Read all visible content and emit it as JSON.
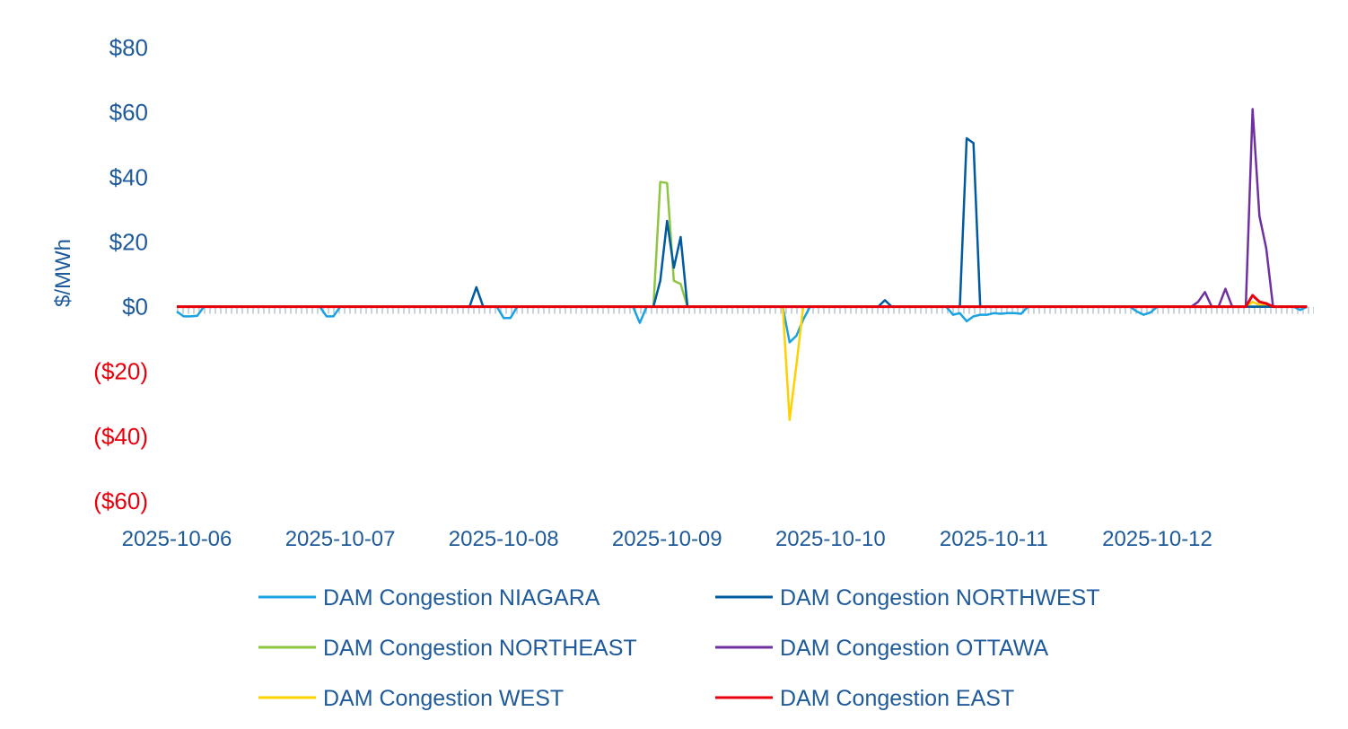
{
  "chart_data": {
    "type": "line",
    "ylabel": "$/MWh",
    "ylim": [
      -60,
      80
    ],
    "yticks": [
      {
        "value": 80,
        "label": "$80"
      },
      {
        "value": 60,
        "label": "$60"
      },
      {
        "value": 40,
        "label": "$40"
      },
      {
        "value": 20,
        "label": "$20"
      },
      {
        "value": 0,
        "label": "$0"
      },
      {
        "value": -20,
        "label": "($20)"
      },
      {
        "value": -40,
        "label": "($40)"
      },
      {
        "value": -60,
        "label": "($60)"
      }
    ],
    "xticks": [
      {
        "x": 0,
        "label": "2025-10-06"
      },
      {
        "x": 24,
        "label": "2025-10-07"
      },
      {
        "x": 48,
        "label": "2025-10-08"
      },
      {
        "x": 72,
        "label": "2025-10-09"
      },
      {
        "x": 96,
        "label": "2025-10-10"
      },
      {
        "x": 120,
        "label": "2025-10-11"
      },
      {
        "x": 144,
        "label": "2025-10-12"
      }
    ],
    "xlim": [
      0,
      167
    ],
    "legend_position": "bottom",
    "series": [
      {
        "name": "DAM Congestion NIAGARA",
        "color": "#1aa3e0",
        "points": [
          [
            0,
            -1.5
          ],
          [
            1,
            -3
          ],
          [
            2,
            -3
          ],
          [
            3,
            -2.8
          ],
          [
            4,
            0
          ],
          [
            21,
            0
          ],
          [
            22,
            -3
          ],
          [
            23,
            -3
          ],
          [
            24,
            0
          ],
          [
            47,
            0
          ],
          [
            48,
            -3.5
          ],
          [
            49,
            -3.5
          ],
          [
            50,
            0
          ],
          [
            67,
            0
          ],
          [
            68,
            -5
          ],
          [
            69,
            0
          ],
          [
            89,
            0
          ],
          [
            90,
            -11
          ],
          [
            91,
            -9
          ],
          [
            92,
            -4
          ],
          [
            93,
            0
          ],
          [
            113,
            0
          ],
          [
            114,
            -2.5
          ],
          [
            115,
            -2
          ],
          [
            116,
            -4.5
          ],
          [
            117,
            -3
          ],
          [
            118,
            -2.5
          ],
          [
            119,
            -2.5
          ],
          [
            120,
            -2
          ],
          [
            121,
            -2.2
          ],
          [
            122,
            -2
          ],
          [
            123,
            -2
          ],
          [
            124,
            -2.2
          ],
          [
            125,
            0
          ],
          [
            140,
            0
          ],
          [
            141,
            -1.5
          ],
          [
            142,
            -2.5
          ],
          [
            143,
            -1.8
          ],
          [
            144,
            0
          ],
          [
            164,
            0
          ],
          [
            165,
            -1
          ],
          [
            166,
            0
          ]
        ]
      },
      {
        "name": "DAM Congestion NORTHWEST",
        "color": "#005aa0",
        "points": [
          [
            0,
            0
          ],
          [
            43,
            0
          ],
          [
            44,
            6
          ],
          [
            45,
            0
          ],
          [
            70,
            0
          ],
          [
            71,
            8
          ],
          [
            72,
            26.5
          ],
          [
            73,
            12
          ],
          [
            74,
            21.5
          ],
          [
            75,
            0
          ],
          [
            103,
            0
          ],
          [
            104,
            2
          ],
          [
            105,
            0
          ],
          [
            115,
            0
          ],
          [
            116,
            52
          ],
          [
            117,
            50.5
          ],
          [
            118,
            0
          ],
          [
            166,
            0
          ]
        ]
      },
      {
        "name": "DAM Congestion NORTHEAST",
        "color": "#8dc63f",
        "points": [
          [
            0,
            0
          ],
          [
            70,
            0
          ],
          [
            71,
            38.5
          ],
          [
            72,
            38.2
          ],
          [
            73,
            8
          ],
          [
            74,
            7
          ],
          [
            75,
            0
          ],
          [
            166,
            0
          ]
        ]
      },
      {
        "name": "DAM Congestion OTTAWA",
        "color": "#7030a0",
        "points": [
          [
            0,
            0
          ],
          [
            149,
            0
          ],
          [
            150,
            1.5
          ],
          [
            151,
            4.5
          ],
          [
            152,
            0
          ],
          [
            153,
            0
          ],
          [
            154,
            5.5
          ],
          [
            155,
            0
          ],
          [
            157,
            0
          ],
          [
            158,
            61
          ],
          [
            159,
            28
          ],
          [
            160,
            18
          ],
          [
            161,
            0
          ],
          [
            166,
            0
          ]
        ]
      },
      {
        "name": "DAM Congestion WEST",
        "color": "#ffd100",
        "points": [
          [
            0,
            0
          ],
          [
            89,
            0
          ],
          [
            90,
            -35
          ],
          [
            91,
            -18
          ],
          [
            92,
            0
          ],
          [
            157,
            0
          ],
          [
            158,
            1.5
          ],
          [
            159,
            0.5
          ],
          [
            160,
            0.5
          ],
          [
            161,
            0
          ],
          [
            166,
            0
          ]
        ]
      },
      {
        "name": "DAM Congestion EAST",
        "color": "#e8000b",
        "points": [
          [
            0,
            0
          ],
          [
            157,
            0
          ],
          [
            158,
            3.5
          ],
          [
            159,
            1.5
          ],
          [
            160,
            1
          ],
          [
            161,
            0
          ],
          [
            166,
            0
          ]
        ]
      }
    ]
  },
  "colors": {
    "positive_tick": "#1f5a9a",
    "negative_tick": "#e8000b",
    "zero_axis": "#c9d3de"
  }
}
